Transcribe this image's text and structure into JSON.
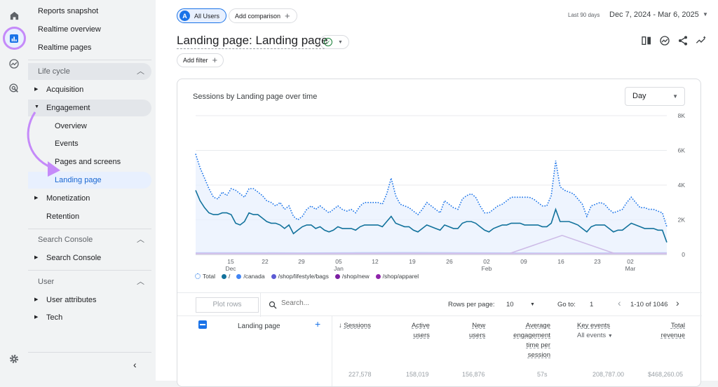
{
  "nav": {
    "items": {
      "reports_snapshot": "Reports snapshot",
      "realtime_overview": "Realtime overview",
      "realtime_pages": "Realtime pages"
    },
    "life_cycle": {
      "label": "Life cycle",
      "acquisition": "Acquisition",
      "engagement": "Engagement",
      "engagement_children": [
        "Overview",
        "Events",
        "Pages and screens",
        "Landing page"
      ],
      "monetization": "Monetization",
      "retention": "Retention"
    },
    "search_console": {
      "label": "Search Console",
      "item": "Search Console"
    },
    "user": {
      "label": "User",
      "attributes": "User attributes",
      "tech": "Tech"
    }
  },
  "header": {
    "segment_badge": "A",
    "segment_label": "All Users",
    "add_comparison": "Add comparison",
    "date_label": "Last 90 days",
    "date_range": "Dec 7, 2024 - Mar 6, 2025",
    "title": "Landing page: Landing page",
    "add_filter": "Add filter"
  },
  "card": {
    "title": "Sessions by Landing page over time",
    "granularity": "Day"
  },
  "chart_data": {
    "type": "line",
    "title": "Sessions by Landing page over time",
    "x_tick_labels": [
      "15\nDec",
      "22",
      "29",
      "05\nJan",
      "12",
      "19",
      "26",
      "02\nFeb",
      "09",
      "16",
      "23",
      "02\nMar"
    ],
    "y_tick_labels": [
      "0",
      "2K",
      "4K",
      "6K",
      "8K"
    ],
    "ylim": [
      0,
      8000
    ],
    "legend_placement": "bottom-left",
    "series": [
      {
        "name": "Total",
        "color": "#1a73e8",
        "style": "dotted-area",
        "values": [
          5800,
          5000,
          4400,
          3800,
          3300,
          3200,
          3600,
          3400,
          3800,
          3700,
          3500,
          3300,
          3800,
          3800,
          3600,
          3400,
          3100,
          3000,
          2800,
          3000,
          2600,
          2800,
          2200,
          2000,
          2200,
          2600,
          2800,
          2600,
          2800,
          2600,
          2400,
          2600,
          2800,
          2600,
          2500,
          2600,
          2400,
          2800,
          3000,
          3000,
          3000,
          3000,
          2900,
          3500,
          4400,
          3400,
          2900,
          2800,
          2700,
          2500,
          2300,
          2600,
          3000,
          2800,
          2600,
          2400,
          3100,
          2900,
          2700,
          2600,
          3200,
          3400,
          3500,
          3300,
          2800,
          2400,
          2400,
          2600,
          2800,
          2900,
          3100,
          3300,
          3300,
          3300,
          3300,
          3300,
          3200,
          3000,
          2800,
          2800,
          3400,
          5400,
          3900,
          3700,
          3600,
          3500,
          3200,
          2900,
          2200,
          2800,
          2900,
          3000,
          2900,
          2600,
          2400,
          2500,
          2600,
          3000,
          3300,
          3000,
          2700,
          2700,
          2600,
          2600,
          2500,
          2400,
          1600
        ]
      },
      {
        "name": "/",
        "color": "#12729c",
        "style": "solid",
        "values": [
          3700,
          3100,
          2700,
          2400,
          2300,
          2300,
          2400,
          2400,
          2300,
          1800,
          1700,
          1900,
          2400,
          2300,
          2300,
          2100,
          1900,
          1800,
          1800,
          1700,
          1500,
          1700,
          1200,
          1400,
          1600,
          1700,
          1700,
          1500,
          1600,
          1400,
          1300,
          1400,
          1600,
          1500,
          1500,
          1500,
          1400,
          1600,
          1700,
          1700,
          1700,
          1700,
          1600,
          1900,
          2200,
          1800,
          1700,
          1600,
          1600,
          1400,
          1300,
          1500,
          1700,
          1600,
          1500,
          1400,
          1700,
          1600,
          1500,
          1500,
          1800,
          1900,
          1900,
          1800,
          1600,
          1400,
          1300,
          1500,
          1600,
          1700,
          1700,
          1800,
          1800,
          1800,
          1700,
          1700,
          1700,
          1700,
          1600,
          1600,
          1800,
          2600,
          1900,
          1900,
          1900,
          1800,
          1700,
          1500,
          1300,
          1600,
          1700,
          1700,
          1700,
          1500,
          1300,
          1400,
          1400,
          1600,
          1800,
          1700,
          1600,
          1500,
          1500,
          1500,
          1400,
          1400,
          700
        ]
      },
      {
        "name": "/canada",
        "color": "#4285f4",
        "style": "solid",
        "values": [
          100,
          100,
          90,
          100,
          110,
          100,
          90,
          80,
          90,
          100
        ]
      },
      {
        "name": "/shop/lifestyle/bags",
        "color": "#5c5bd4",
        "style": "solid",
        "values": [
          80,
          80,
          70,
          80,
          90,
          80,
          70,
          70,
          80,
          90
        ]
      },
      {
        "name": "/shop/new",
        "color": "#7b1fa2",
        "style": "solid",
        "values": [
          60,
          60,
          60,
          60,
          60,
          60,
          60,
          1100,
          60,
          60
        ]
      },
      {
        "name": "/shop/apparel",
        "color": "#8e24aa",
        "style": "solid",
        "values": [
          50,
          50,
          50,
          50,
          50,
          50,
          50,
          50,
          50,
          50
        ]
      }
    ]
  },
  "table": {
    "plot_rows": "Plot rows",
    "search_placeholder": "Search...",
    "rows_per_page_label": "Rows per page:",
    "rows_per_page": "10",
    "goto_label": "Go to:",
    "goto_value": "1",
    "pagination": "1-10 of 1046",
    "dimension_header": "Landing page",
    "headers": {
      "sessions": "Sessions",
      "active_users_1": "Active",
      "active_users_2": "users",
      "new_users_1": "New",
      "new_users_2": "users",
      "avg_eng_1": "Average",
      "avg_eng_2": "engagement",
      "avg_eng_3": "time per",
      "avg_eng_4": "session",
      "key_events": "Key events",
      "key_events_sub": "All events",
      "total_revenue_1": "Total",
      "total_revenue_2": "revenue"
    },
    "totals": [
      "227,578",
      "158,019",
      "156,876",
      "57s",
      "208,787.00",
      "$468,260.05"
    ]
  }
}
